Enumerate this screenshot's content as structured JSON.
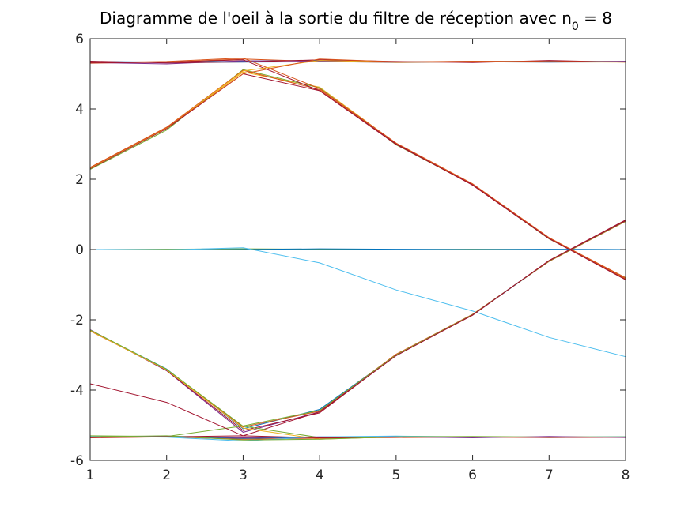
{
  "chart_data": {
    "type": "line",
    "title_main": "Diagramme de l'oeil à la sortie du filtre de réception avec n",
    "title_subscript": "0",
    "title_suffix": " = 8",
    "xlabel": "",
    "ylabel": "",
    "xlim": [
      1,
      8
    ],
    "ylim": [
      -6,
      6
    ],
    "grid": false,
    "x": [
      1,
      2,
      3,
      4,
      5,
      6,
      7,
      8
    ],
    "x_ticks": [
      "1",
      "2",
      "3",
      "4",
      "5",
      "6",
      "7",
      "8"
    ],
    "y_ticks": [
      "-6",
      "-4",
      "-2",
      "0",
      "2",
      "4",
      "6"
    ],
    "y_tick_values": [
      -6,
      -4,
      -2,
      0,
      2,
      4,
      6
    ],
    "series": [
      {
        "color": "#0072BD",
        "values": [
          5.35,
          5.33,
          5.36,
          5.38,
          5.34,
          5.35,
          5.36,
          5.35
        ]
      },
      {
        "color": "#D95319",
        "values": [
          5.3,
          5.33,
          5.42,
          5.35,
          5.32,
          5.34,
          5.33,
          5.34
        ]
      },
      {
        "color": "#7E2F8E",
        "values": [
          5.32,
          5.28,
          5.37,
          5.36,
          5.33,
          5.36,
          5.33,
          5.36
        ]
      },
      {
        "color": "#A2142F",
        "values": [
          5.36,
          5.31,
          5.33,
          5.4,
          5.35,
          5.32,
          5.38,
          5.33
        ]
      },
      {
        "color": "#4DBEEE",
        "values": [
          5.33,
          5.34,
          5.33,
          5.34,
          5.33,
          5.34,
          5.33,
          5.34
        ]
      },
      {
        "color": "#EDB120",
        "values": [
          2.3,
          3.45,
          5.05,
          4.62,
          3.02,
          1.86,
          0.32,
          -0.84
        ]
      },
      {
        "color": "#77AC30",
        "values": [
          2.28,
          3.4,
          5.12,
          4.6,
          2.98,
          1.84,
          0.3,
          -0.82
        ]
      },
      {
        "color": "#D95319",
        "values": [
          2.34,
          3.48,
          5.1,
          4.55,
          3.0,
          1.85,
          0.33,
          -0.8
        ]
      },
      {
        "color": "#A2142F",
        "values": [
          2.3,
          3.44,
          5.0,
          4.52,
          3.01,
          1.83,
          0.31,
          -0.85
        ]
      },
      {
        "color": "#D95319",
        "values": [
          5.32,
          5.35,
          5.45,
          4.58,
          3.03,
          1.87,
          0.34,
          -0.83
        ]
      },
      {
        "color": "#A2142F",
        "values": [
          5.31,
          5.33,
          5.4,
          4.52,
          2.99,
          1.84,
          0.31,
          -0.86
        ]
      },
      {
        "color": "#EDB120",
        "values": [
          2.32,
          3.46,
          5.08,
          5.38,
          5.33,
          5.35,
          5.34,
          5.33
        ]
      },
      {
        "color": "#D95319",
        "values": [
          2.33,
          3.47,
          5.0,
          5.42,
          5.34,
          5.36,
          5.35,
          5.34
        ]
      },
      {
        "color": "#77AC30",
        "values": [
          0.0,
          0.01,
          0.02,
          0.01,
          0.0,
          0.01,
          0.0,
          0.0
        ]
      },
      {
        "color": "#0072BD",
        "values": [
          0.0,
          -0.01,
          0.0,
          0.02,
          0.01,
          0.0,
          0.01,
          0.0
        ]
      },
      {
        "color": "#4DBEEE",
        "values": [
          0.0,
          -0.01,
          0.05,
          -0.38,
          -1.15,
          -1.75,
          -2.5,
          -3.05
        ]
      },
      {
        "color": "#0072BD",
        "values": [
          -2.3,
          -3.4,
          -5.1,
          -4.55,
          -3.0,
          -1.86,
          -0.33,
          0.83
        ]
      },
      {
        "color": "#7E2F8E",
        "values": [
          -2.28,
          -3.45,
          -5.2,
          -4.62,
          -3.02,
          -1.85,
          -0.32,
          0.82
        ]
      },
      {
        "color": "#D95319",
        "values": [
          -2.32,
          -3.42,
          -5.05,
          -4.6,
          -2.98,
          -1.84,
          -0.34,
          0.8
        ]
      },
      {
        "color": "#A2142F",
        "values": [
          -2.3,
          -3.44,
          -5.15,
          -4.65,
          -3.01,
          -1.87,
          -0.31,
          0.84
        ]
      },
      {
        "color": "#77AC30",
        "values": [
          -5.3,
          -5.32,
          -5.02,
          -4.58,
          -3.0,
          -1.85,
          -0.33,
          0.81
        ]
      },
      {
        "color": "#A2142F",
        "values": [
          -3.82,
          -4.35,
          -5.3,
          -4.62,
          -3.02,
          -1.86,
          -0.32,
          0.82
        ]
      },
      {
        "color": "#EDB120",
        "values": [
          -2.31,
          -3.43,
          -5.08,
          -5.4,
          -5.33,
          -5.35,
          -5.33,
          -5.34
        ]
      },
      {
        "color": "#77AC30",
        "values": [
          -2.29,
          -3.41,
          -5.03,
          -5.35,
          -5.32,
          -5.34,
          -5.33,
          -5.33
        ]
      },
      {
        "color": "#0072BD",
        "values": [
          -5.33,
          -5.32,
          -5.38,
          -5.34,
          -5.32,
          -5.33,
          -5.34,
          -5.33
        ]
      },
      {
        "color": "#D95319",
        "values": [
          -5.36,
          -5.33,
          -5.4,
          -5.37,
          -5.35,
          -5.34,
          -5.35,
          -5.34
        ]
      },
      {
        "color": "#7E2F8E",
        "values": [
          -5.34,
          -5.31,
          -5.36,
          -5.33,
          -5.33,
          -5.36,
          -5.32,
          -5.35
        ]
      },
      {
        "color": "#4DBEEE",
        "values": [
          -5.32,
          -5.34,
          -5.45,
          -5.33,
          -5.31,
          -5.33,
          -5.34,
          -5.33
        ]
      },
      {
        "color": "#A2142F",
        "values": [
          -5.35,
          -5.33,
          -5.3,
          -5.36,
          -5.34,
          -5.33,
          -5.35,
          -5.34
        ]
      },
      {
        "color": "#77AC30",
        "values": [
          -5.33,
          -5.3,
          -5.42,
          -5.4,
          -5.33,
          -5.32,
          -5.34,
          -5.33
        ]
      }
    ]
  }
}
